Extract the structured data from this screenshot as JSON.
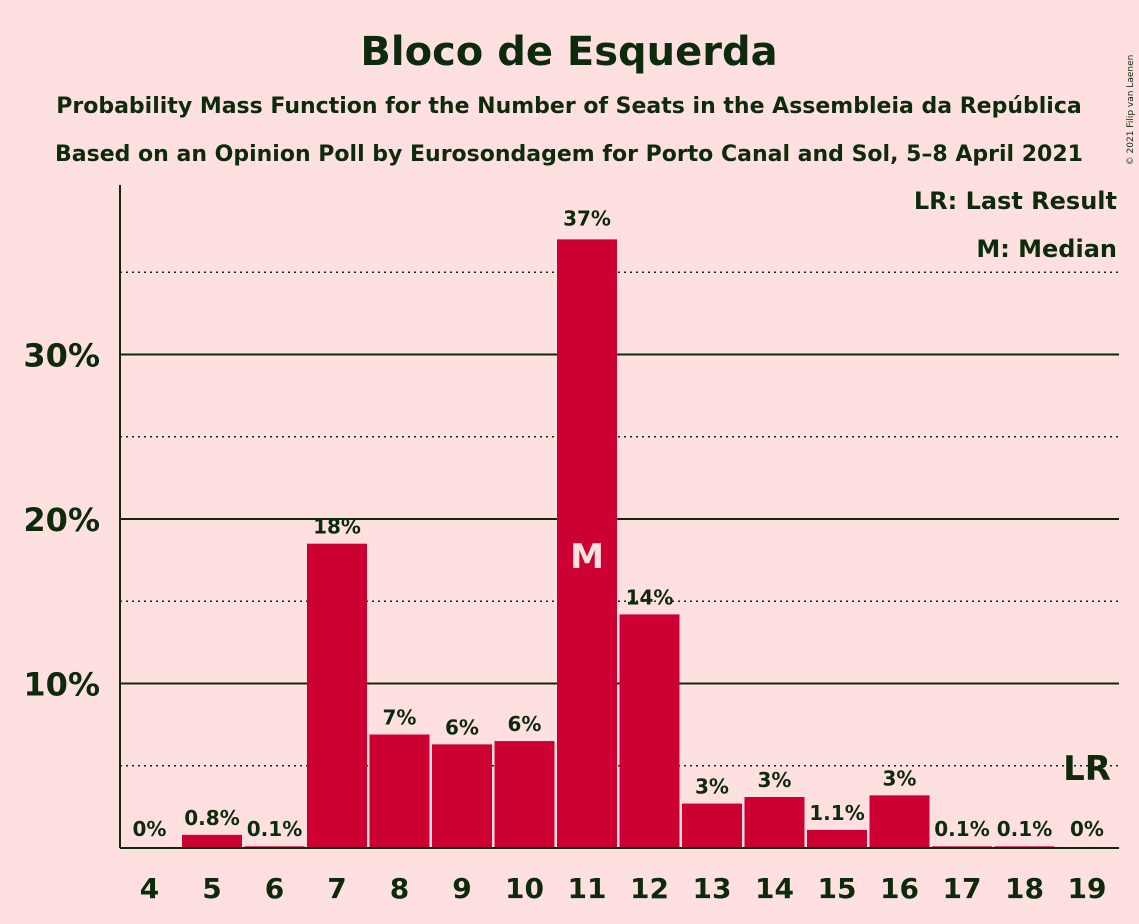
{
  "title": "Bloco de Esquerda",
  "subtitle1": "Probability Mass Function for the Number of Seats in the Assembleia da República",
  "subtitle2": "Based on an Opinion Poll by Eurosondagem for Porto Canal and Sol, 5–8 April 2021",
  "copyright": "© 2021 Filip van Laenen",
  "legend": {
    "lr": "LR: Last Result",
    "median": "M: Median"
  },
  "markers": {
    "median_text": "M",
    "median_seat": 11,
    "last_result_text": "LR",
    "last_result_seat": 19
  },
  "colors": {
    "background": "#ffe0e0",
    "bar": "#cc0033",
    "text": "#0d2a0d"
  },
  "chart_data": {
    "type": "bar",
    "categories": [
      "4",
      "5",
      "6",
      "7",
      "8",
      "9",
      "10",
      "11",
      "12",
      "13",
      "14",
      "15",
      "16",
      "17",
      "18",
      "19"
    ],
    "values": [
      0,
      0.8,
      0.1,
      18.5,
      6.9,
      6.3,
      6.5,
      37.0,
      14.2,
      2.7,
      3.1,
      1.1,
      3.2,
      0.1,
      0.1,
      0
    ],
    "value_labels": [
      "0%",
      "0.8%",
      "0.1%",
      "18%",
      "7%",
      "6%",
      "6%",
      "37%",
      "14%",
      "3%",
      "3%",
      "1.1%",
      "3%",
      "0.1%",
      "0.1%",
      "0%"
    ],
    "ylim": [
      0,
      40
    ],
    "yticks": [
      10,
      20,
      30
    ],
    "ytick_labels": [
      "10%",
      "20%",
      "30%"
    ],
    "minor_gridlines": [
      5,
      15,
      25,
      35
    ],
    "grid": true,
    "legend_position": "top-right"
  }
}
